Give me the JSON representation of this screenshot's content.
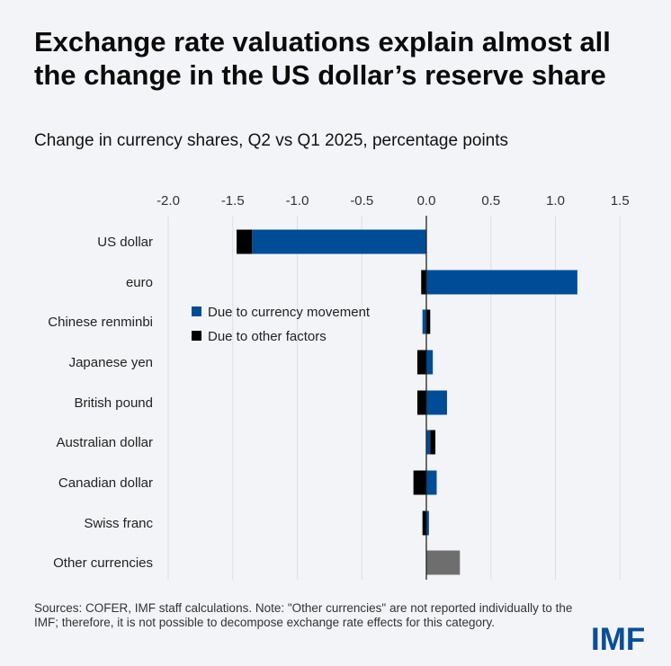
{
  "title": "Exchange rate valuations explain almost all the change in the US dollar’s reserve share",
  "subtitle": "Change in currency shares, Q2 vs Q1 2025, percentage points",
  "source": "Sources: COFER, IMF staff calculations. Note: \"Other currencies\" are not reported individually to the IMF; therefore, it is not possible to decompose exchange rate effects for this category.",
  "logo": "IMF",
  "chart_data": {
    "type": "bar",
    "orientation": "horizontal",
    "stacked": true,
    "title": "Change in currency shares, Q2 vs Q1 2025, percentage points",
    "xlim": [
      -2.0,
      1.5
    ],
    "xticks": [
      "-2.0",
      "-1.5",
      "-1.0",
      "-0.5",
      "0.0",
      "0.5",
      "1.0",
      "1.5"
    ],
    "xtick_values": [
      -2.0,
      -1.5,
      -1.0,
      -0.5,
      0.0,
      0.5,
      1.0,
      1.5
    ],
    "grid": true,
    "legend_position": "middle-left",
    "categories": [
      "US dollar",
      "euro",
      "Chinese renminbi",
      "Japanese yen",
      "British pound",
      "Australian dollar",
      "Canadian dollar",
      "Swiss franc",
      "Other currencies"
    ],
    "series": [
      {
        "name": "Due to currency movement",
        "color": "#004c97",
        "values": [
          -1.35,
          1.17,
          -0.03,
          0.05,
          0.16,
          0.03,
          0.08,
          0.02,
          null
        ]
      },
      {
        "name": "Due to other factors",
        "color": "#009cd",
        "values": [
          -0.12,
          -0.04,
          0.03,
          -0.07,
          -0.07,
          0.04,
          -0.1,
          -0.03,
          null
        ]
      },
      {
        "name": "Other currencies (total)",
        "color": "#6e6e6e",
        "values": [
          null,
          null,
          null,
          null,
          null,
          null,
          null,
          null,
          0.26
        ],
        "in_legend": false
      }
    ]
  }
}
